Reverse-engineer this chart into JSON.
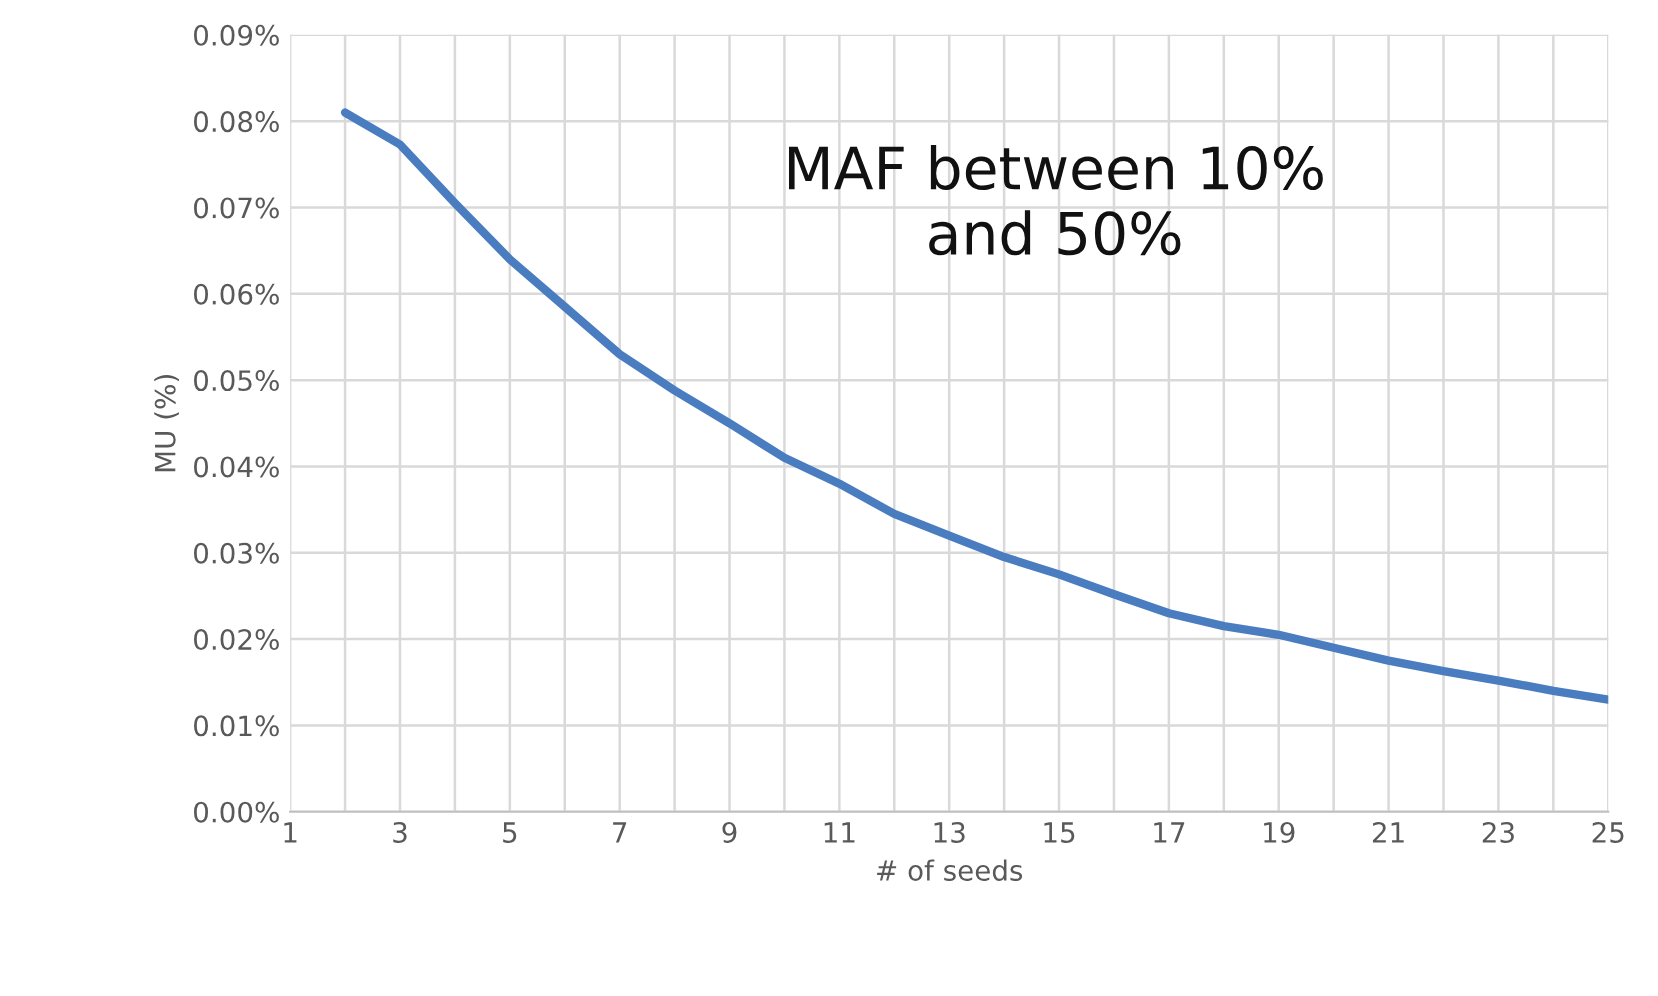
{
  "chart_data": {
    "type": "line",
    "xlabel": "# of seeds",
    "ylabel": "MU (%)",
    "x": [
      2,
      3,
      4,
      5,
      6,
      7,
      8,
      9,
      10,
      11,
      12,
      13,
      14,
      15,
      16,
      17,
      18,
      19,
      20,
      21,
      22,
      23,
      24,
      25
    ],
    "series": [
      {
        "color": "#4a7cc0",
        "values": [
          0.081,
          0.0773,
          0.0705,
          0.064,
          0.0585,
          0.053,
          0.0488,
          0.045,
          0.041,
          0.038,
          0.0345,
          0.032,
          0.0295,
          0.0275,
          0.0252,
          0.023,
          0.0215,
          0.0205,
          0.019,
          0.0175,
          0.0163,
          0.0152,
          0.014,
          0.013
        ]
      }
    ],
    "xlim": [
      1,
      25
    ],
    "xticks": [
      1,
      {
        "value": 2,
        "label": null
      },
      3,
      {
        "value": 4,
        "label": null
      },
      5,
      {
        "value": 6,
        "label": null
      },
      7,
      {
        "value": 8,
        "label": null
      },
      9,
      {
        "value": 10,
        "label": null
      },
      11,
      {
        "value": 12,
        "label": null
      },
      13,
      {
        "value": 14,
        "label": null
      },
      15,
      {
        "value": 16,
        "label": null
      },
      17,
      {
        "value": 18,
        "label": null
      },
      19,
      {
        "value": 20,
        "label": null
      },
      21,
      {
        "value": 22,
        "label": null
      },
      23,
      {
        "value": 24,
        "label": null
      },
      25
    ],
    "ylim": [
      0,
      0.09
    ],
    "yticks": [
      {
        "value": 0,
        "label": "0.00%"
      },
      {
        "value": 0.01,
        "label": "0.01%"
      },
      {
        "value": 0.02,
        "label": "0.02%"
      },
      {
        "value": 0.03,
        "label": "0.03%"
      },
      {
        "value": 0.04,
        "label": "0.04%"
      },
      {
        "value": 0.05,
        "label": "0.05%"
      },
      {
        "value": 0.06,
        "label": "0.06%"
      },
      {
        "value": 0.07,
        "label": "0.07%"
      },
      {
        "value": 0.08,
        "label": "0.08%"
      },
      {
        "value": 0.09,
        "label": "0.09%"
      }
    ],
    "grid": true,
    "marker": "none",
    "line_style": "solid",
    "legend": false,
    "annotations": [
      "MAF between 10%\nand 50%"
    ]
  }
}
